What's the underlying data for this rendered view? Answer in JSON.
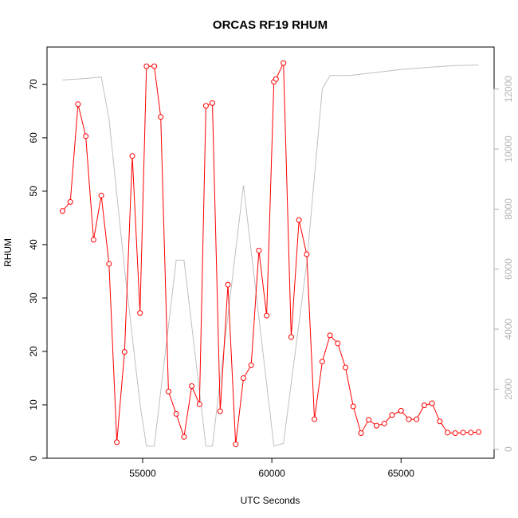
{
  "chart_data": {
    "type": "line",
    "title": "ORCAS RF19 RHUM",
    "xlabel": "UTC Seconds",
    "ylabel": "RHUM",
    "xlim": [
      51300,
      68600
    ],
    "ylim": [
      0,
      77
    ],
    "y2lim": [
      -300,
      13400
    ],
    "x_ticks": [
      55000,
      60000,
      65000
    ],
    "y_ticks": [
      0,
      10,
      20,
      30,
      40,
      50,
      60,
      70
    ],
    "y2_ticks": [
      0,
      2000,
      4000,
      6000,
      8000,
      10000,
      12000
    ],
    "grid": false,
    "legend": "none",
    "series": [
      {
        "axis": "left",
        "color": "#ff0000",
        "marker": "open-circle",
        "x": [
          51900,
          52200,
          52500,
          52800,
          53100,
          53400,
          53700,
          54000,
          54300,
          54600,
          54900,
          55150,
          55450,
          55700,
          56000,
          56300,
          56600,
          56900,
          57200,
          57450,
          57700,
          58000,
          58300,
          58600,
          58900,
          59200,
          59500,
          59800,
          60080,
          60160,
          60450,
          60750,
          61050,
          61350,
          61650,
          61950,
          62250,
          62550,
          62850,
          63150,
          63450,
          63750,
          64050,
          64350,
          64650,
          65000,
          65300,
          65600,
          65900,
          66200,
          66500,
          66800,
          67100,
          67400,
          67700,
          68000
        ],
        "values": [
          46.3,
          48.0,
          66.3,
          60.3,
          40.9,
          49.2,
          36.4,
          3.0,
          19.9,
          56.6,
          27.2,
          73.4,
          73.4,
          63.9,
          12.5,
          8.3,
          4.0,
          13.5,
          10.1,
          66.0,
          66.5,
          8.8,
          32.5,
          2.6,
          15.0,
          17.4,
          38.9,
          26.7,
          70.5,
          71.0,
          74.0,
          22.7,
          44.6,
          38.2,
          7.3,
          18.1,
          23.0,
          21.5,
          17.0,
          9.7,
          4.7,
          7.2,
          6.1,
          6.5,
          8.1,
          8.9,
          7.3,
          7.3,
          9.9,
          10.3,
          6.9,
          4.8,
          4.7,
          4.8,
          4.8,
          4.9
        ]
      },
      {
        "axis": "right",
        "color": "#c0c0c0",
        "marker": "none",
        "x": [
          51900,
          52800,
          53400,
          53700,
          54300,
          54900,
          55150,
          55450,
          56300,
          56600,
          57450,
          57700,
          58900,
          60080,
          60450,
          61350,
          61950,
          62250,
          63000,
          64000,
          65000,
          66000,
          67000,
          68000
        ],
        "values": [
          12300,
          12350,
          12400,
          11000,
          6000,
          1500,
          100,
          100,
          6300,
          6300,
          100,
          100,
          8800,
          100,
          200,
          6200,
          12000,
          12450,
          12450,
          12550,
          12650,
          12720,
          12780,
          12800
        ]
      }
    ]
  }
}
